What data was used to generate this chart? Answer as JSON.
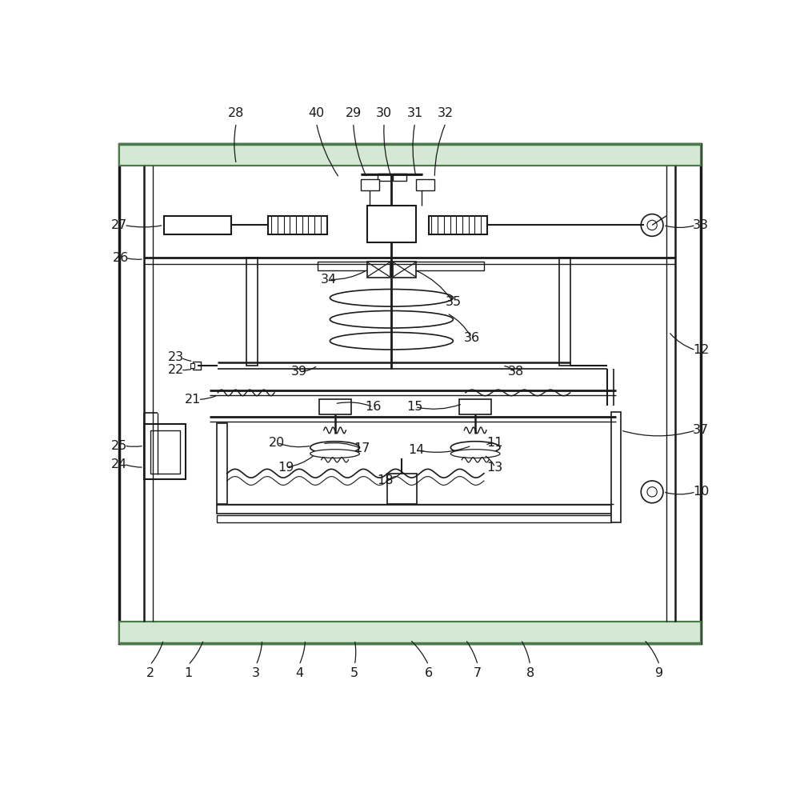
{
  "line_color": "#1a1a1a",
  "label_color": "#1a1a1a",
  "green_color": "#4a7a4a",
  "fig_w": 10.0,
  "fig_h": 9.85,
  "dpi": 100
}
